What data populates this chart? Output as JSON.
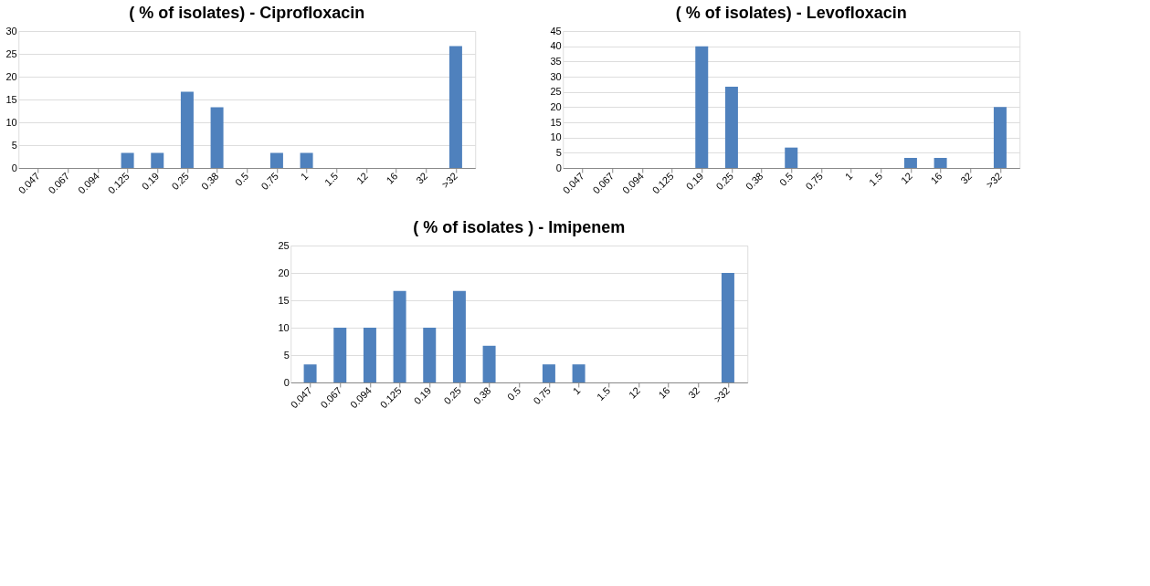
{
  "chart_data": [
    {
      "type": "bar",
      "title": "( % of isolates) - Ciprofloxacin",
      "categories": [
        "0.047",
        "0.067",
        "0.094",
        "0.125",
        "0.19",
        "0.25",
        "0.38",
        "0.5",
        "0.75",
        "1",
        "1.5",
        "12",
        "16",
        "32",
        ">32"
      ],
      "values": [
        0,
        0,
        0,
        3.3,
        3.3,
        16.7,
        13.3,
        0,
        3.3,
        3.3,
        0,
        0,
        0,
        0,
        26.7
      ],
      "color": "#4f81bd",
      "ylim": [
        0,
        30
      ],
      "yticks": [
        0,
        5,
        10,
        15,
        20,
        25,
        30
      ],
      "grid": "y"
    },
    {
      "type": "bar",
      "title": "( % of isolates) - Levofloxacin",
      "categories": [
        "0.047",
        "0.067",
        "0.094",
        "0.125",
        "0.19",
        "0.25",
        "0.38",
        "0.5",
        "0.75",
        "1",
        "1.5",
        "12",
        "16",
        "32",
        ">32"
      ],
      "values": [
        0,
        0,
        0,
        0,
        40,
        26.7,
        0,
        6.7,
        0,
        0,
        0,
        3.3,
        3.3,
        0,
        20
      ],
      "color": "#4f81bd",
      "ylim": [
        0,
        45
      ],
      "yticks": [
        0,
        5,
        10,
        15,
        20,
        25,
        30,
        35,
        40,
        45
      ],
      "grid": "y"
    },
    {
      "type": "bar",
      "title": "( % of isolates ) - Imipenem",
      "categories": [
        "0.047",
        "0.067",
        "0.094",
        "0.125",
        "0.19",
        "0.25",
        "0.38",
        "0.5",
        "0.75",
        "1",
        "1.5",
        "12",
        "16",
        "32",
        ">32"
      ],
      "values": [
        3.3,
        10,
        10,
        16.7,
        10,
        16.7,
        6.7,
        0,
        3.3,
        3.3,
        0,
        0,
        0,
        0,
        20
      ],
      "color": "#4f81bd",
      "ylim": [
        0,
        25
      ],
      "yticks": [
        0,
        5,
        10,
        15,
        20,
        25
      ],
      "grid": "y"
    }
  ]
}
